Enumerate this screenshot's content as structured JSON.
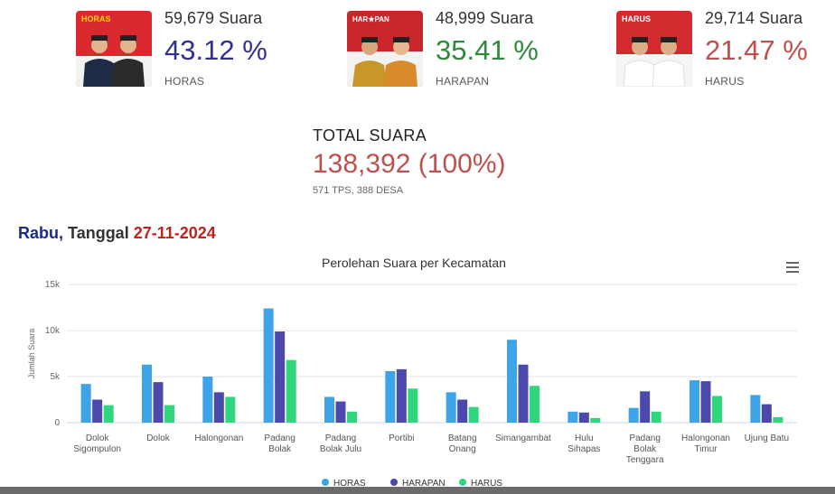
{
  "candidates": [
    {
      "id": "horas",
      "votes": "59,679 Suara",
      "percent": "43.12 %",
      "name": "HORAS",
      "color": "#2e3192",
      "logo_text": "HORAS"
    },
    {
      "id": "harapan",
      "votes": "48,999 Suara",
      "percent": "35.41 %",
      "name": "HARAPAN",
      "color": "#2f8a3c",
      "logo_text": "HAR★PAN"
    },
    {
      "id": "harus",
      "votes": "29,714 Suara",
      "percent": "21.47 %",
      "name": "HARUS",
      "color": "#c0504d",
      "logo_text": "HARUS"
    }
  ],
  "total": {
    "label": "TOTAL SUARA",
    "value": "138,392 (100%)",
    "sub": "571 TPS, 388 DESA"
  },
  "date": {
    "day": "Rabu,",
    "label": "Tanggal",
    "value": "27-11-2024"
  },
  "chart_data": {
    "type": "bar",
    "title": "Perolehan Suara per Kecamatan",
    "ylabel": "Jumlah Suara",
    "xlabel": "",
    "ylim": [
      0,
      15000
    ],
    "yticks": [
      0,
      5000,
      10000,
      15000
    ],
    "ytick_labels": [
      "0",
      "5k",
      "10k",
      "15k"
    ],
    "grid": true,
    "legend_position": "bottom",
    "categories": [
      [
        "Dolok",
        "Sigompulon"
      ],
      [
        "Dolok"
      ],
      [
        "Halongonan"
      ],
      [
        "Padang",
        "Bolak"
      ],
      [
        "Padang",
        "Bolak Julu"
      ],
      [
        "Portibi"
      ],
      [
        "Batang",
        "Onang"
      ],
      [
        "Simangambat"
      ],
      [
        "Hulu",
        "Sihapas"
      ],
      [
        "Padang",
        "Bolak",
        "Tenggara"
      ],
      [
        "Halongonan",
        "Timur"
      ],
      [
        "Ujung Batu"
      ]
    ],
    "series": [
      {
        "name": "HORAS",
        "color": "#3ea4e8",
        "values": [
          4200,
          6300,
          5000,
          12400,
          2800,
          5600,
          3300,
          9000,
          1200,
          1600,
          4600,
          3000
        ]
      },
      {
        "name": "HARAPAN",
        "color": "#4b49ab",
        "values": [
          2500,
          4400,
          3300,
          9900,
          2300,
          5800,
          2500,
          6300,
          1100,
          3400,
          4500,
          2000
        ]
      },
      {
        "name": "HARUS",
        "color": "#2fd67c",
        "values": [
          1900,
          1900,
          2800,
          6800,
          1200,
          3700,
          1700,
          4000,
          500,
          1200,
          2900,
          600
        ]
      }
    ]
  }
}
